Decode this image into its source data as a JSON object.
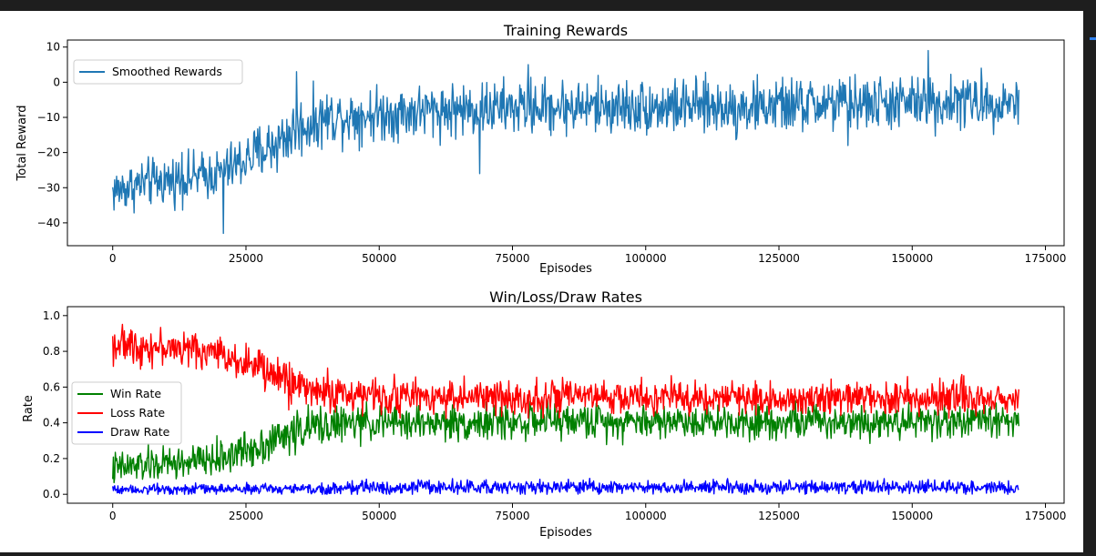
{
  "colors": {
    "reward": "#1f77b4",
    "win": "#008000",
    "loss": "#ff0000",
    "draw": "#0000ff"
  },
  "chart_data": [
    {
      "type": "line",
      "title": "Training Rewards",
      "xlabel": "Episodes",
      "ylabel": "Total Reward",
      "xlim": [
        -8500,
        178500
      ],
      "ylim": [
        -46.5,
        12
      ],
      "xticks": [
        0,
        25000,
        50000,
        75000,
        100000,
        125000,
        150000,
        175000
      ],
      "yticks": [
        10,
        0,
        -10,
        -20,
        -30,
        -40
      ],
      "ytick_labels": [
        "10",
        "0",
        "−10",
        "−20",
        "−30",
        "−40"
      ],
      "grid": false,
      "legend": "upper-left",
      "series": [
        {
          "name": "Smoothed Rewards",
          "color": "#1f77b4",
          "x": [
            0,
            5000,
            10000,
            15000,
            20000,
            25000,
            30000,
            35000,
            40000,
            50000,
            60000,
            70000,
            80000,
            90000,
            100000,
            110000,
            120000,
            130000,
            140000,
            150000,
            160000,
            170000
          ],
          "y": [
            -31,
            -29,
            -28,
            -27,
            -26,
            -22,
            -18,
            -13,
            -10,
            -9,
            -8,
            -7.5,
            -7,
            -7,
            -7,
            -7,
            -7,
            -6.5,
            -6,
            -6,
            -5.5,
            -5.5
          ],
          "band": [
            7,
            7,
            7,
            7,
            7,
            8,
            9,
            9,
            8,
            8,
            8,
            8,
            8,
            8,
            8,
            8,
            8,
            8,
            8,
            8,
            8,
            7
          ],
          "peak_x": [
            13000,
            20800,
            34500,
            68800,
            78000,
            117000,
            138000,
            153000,
            163000
          ],
          "peak_y": [
            -20,
            -43,
            3,
            -26,
            5,
            -16,
            -18,
            9,
            4
          ]
        }
      ]
    },
    {
      "type": "line",
      "title": "Win/Loss/Draw Rates",
      "xlabel": "Episodes",
      "ylabel": "Rate",
      "xlim": [
        -8500,
        178500
      ],
      "ylim": [
        -0.05,
        1.05
      ],
      "xticks": [
        0,
        25000,
        50000,
        75000,
        100000,
        125000,
        150000,
        175000
      ],
      "yticks": [
        0.0,
        0.2,
        0.4,
        0.6,
        0.8,
        1.0
      ],
      "ytick_labels": [
        "0.0",
        "0.2",
        "0.4",
        "0.6",
        "0.8",
        "1.0"
      ],
      "grid": false,
      "legend": "center-left",
      "series": [
        {
          "name": "Win Rate",
          "color": "#008000",
          "x": [
            0,
            5000,
            10000,
            15000,
            20000,
            25000,
            30000,
            35000,
            40000,
            50000,
            60000,
            70000,
            80000,
            90000,
            100000,
            110000,
            120000,
            130000,
            140000,
            150000,
            160000,
            170000
          ],
          "y": [
            0.14,
            0.16,
            0.17,
            0.18,
            0.2,
            0.25,
            0.3,
            0.36,
            0.39,
            0.4,
            0.4,
            0.4,
            0.41,
            0.41,
            0.41,
            0.41,
            0.41,
            0.41,
            0.41,
            0.41,
            0.41,
            0.42
          ],
          "band": [
            0.1,
            0.1,
            0.1,
            0.1,
            0.1,
            0.11,
            0.12,
            0.12,
            0.11,
            0.1,
            0.1,
            0.1,
            0.1,
            0.1,
            0.1,
            0.1,
            0.1,
            0.1,
            0.1,
            0.1,
            0.1,
            0.1
          ]
        },
        {
          "name": "Loss Rate",
          "color": "#ff0000",
          "x": [
            0,
            5000,
            10000,
            15000,
            20000,
            25000,
            30000,
            35000,
            40000,
            50000,
            60000,
            70000,
            80000,
            90000,
            100000,
            110000,
            120000,
            130000,
            140000,
            150000,
            160000,
            170000
          ],
          "y": [
            0.84,
            0.83,
            0.82,
            0.81,
            0.79,
            0.74,
            0.67,
            0.61,
            0.57,
            0.55,
            0.55,
            0.54,
            0.54,
            0.54,
            0.54,
            0.54,
            0.54,
            0.54,
            0.54,
            0.54,
            0.54,
            0.53
          ],
          "band": [
            0.1,
            0.1,
            0.1,
            0.1,
            0.1,
            0.11,
            0.12,
            0.12,
            0.11,
            0.1,
            0.1,
            0.1,
            0.1,
            0.1,
            0.1,
            0.1,
            0.1,
            0.1,
            0.1,
            0.1,
            0.1,
            0.1
          ]
        },
        {
          "name": "Draw Rate",
          "color": "#0000ff",
          "x": [
            0,
            5000,
            10000,
            15000,
            20000,
            25000,
            30000,
            35000,
            40000,
            50000,
            60000,
            70000,
            80000,
            90000,
            100000,
            110000,
            120000,
            130000,
            140000,
            150000,
            160000,
            170000
          ],
          "y": [
            0.03,
            0.03,
            0.03,
            0.03,
            0.03,
            0.03,
            0.03,
            0.03,
            0.03,
            0.04,
            0.04,
            0.04,
            0.04,
            0.04,
            0.04,
            0.04,
            0.04,
            0.04,
            0.04,
            0.04,
            0.04,
            0.04
          ],
          "band": [
            0.03,
            0.03,
            0.03,
            0.03,
            0.03,
            0.03,
            0.03,
            0.03,
            0.04,
            0.04,
            0.04,
            0.04,
            0.04,
            0.04,
            0.04,
            0.04,
            0.04,
            0.04,
            0.04,
            0.04,
            0.04,
            0.04
          ]
        }
      ]
    }
  ]
}
